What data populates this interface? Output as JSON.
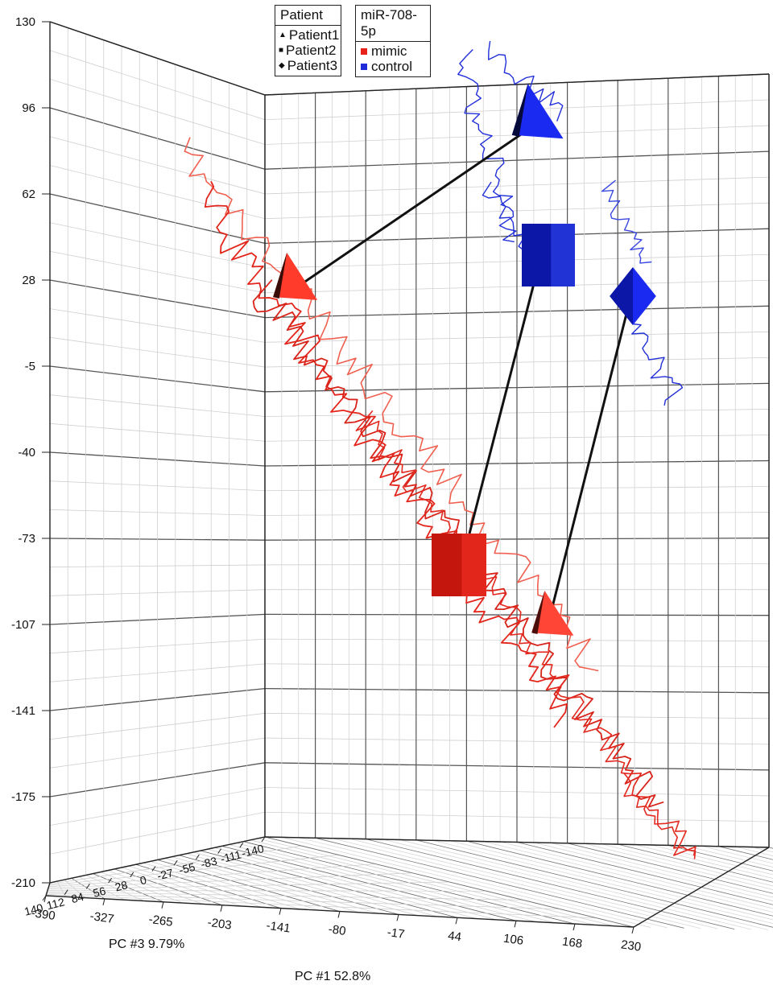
{
  "chart_data": {
    "type": "scatter",
    "subtype": "3d-pca",
    "axes": {
      "z": {
        "ticks": [
          "130",
          "96",
          "62",
          "28",
          "-5",
          "-40",
          "-73",
          "-107",
          "-141",
          "-175",
          "-210"
        ],
        "range": [
          -210,
          130
        ]
      },
      "pc1": {
        "label": "PC #1 52.8%",
        "ticks": [
          "-390",
          "-327",
          "-265",
          "-203",
          "-141",
          "-80",
          "-17",
          "44",
          "106",
          "168",
          "230"
        ],
        "range": [
          -390,
          230
        ]
      },
      "pc3": {
        "label": "PC #3 9.79%",
        "ticks": [
          "140",
          "112",
          "84",
          "56",
          "28",
          "0",
          "-27",
          "-55",
          "-83",
          "-111",
          "-140"
        ],
        "range": [
          140,
          -140
        ]
      }
    },
    "grid": true,
    "legends": [
      {
        "title": "Patient",
        "position": "top-center",
        "entries": [
          {
            "label": "Patient1",
            "marker": "▲"
          },
          {
            "label": "Patient2",
            "marker": "■"
          },
          {
            "label": "Patient3",
            "marker": "◆"
          }
        ]
      },
      {
        "title": "miR-708-5p",
        "position": "top-center",
        "entries": [
          {
            "label": "mimic",
            "color": "#e8221b"
          },
          {
            "label": "control",
            "color": "#1f2bd8"
          }
        ]
      }
    ],
    "series": [
      {
        "name": "mimic",
        "color": "#e8221b",
        "points": [
          {
            "patient": "Patient1",
            "pc1": -203,
            "pc3": 0,
            "z": 28
          },
          {
            "patient": "Patient2",
            "pc1": 44,
            "pc3": 0,
            "z": -73
          },
          {
            "patient": "Patient3",
            "pc1": 106,
            "pc3": 0,
            "z": -107
          }
        ]
      },
      {
        "name": "control",
        "color": "#1f2bd8",
        "points": [
          {
            "patient": "Patient1",
            "pc1": 106,
            "pc3": 0,
            "z": 96
          },
          {
            "patient": "Patient2",
            "pc1": 106,
            "pc3": 0,
            "z": 28
          },
          {
            "patient": "Patient3",
            "pc1": 168,
            "pc3": 0,
            "z": 28
          }
        ]
      }
    ],
    "pairs": [
      [
        "Patient1"
      ],
      [
        "Patient2"
      ],
      [
        "Patient3"
      ]
    ]
  }
}
